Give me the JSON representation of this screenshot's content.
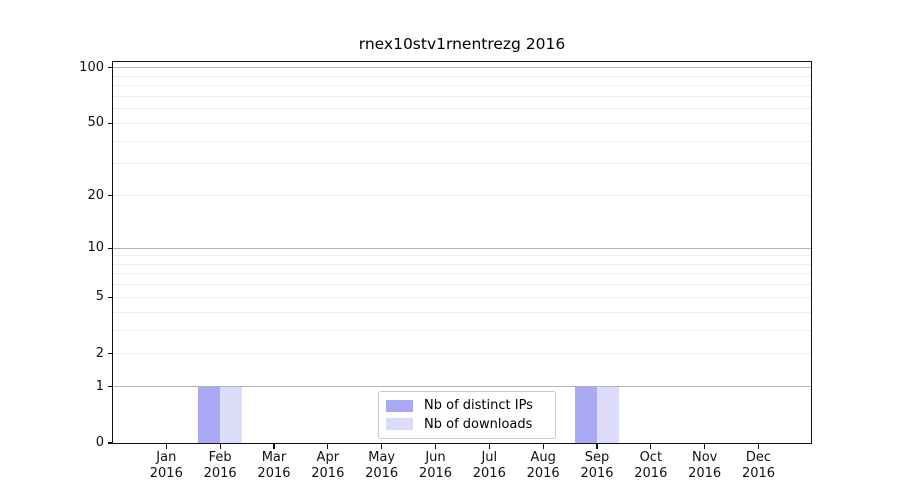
{
  "chart_data": {
    "type": "bar",
    "title": "rnex10stv1rnentrezg 2016",
    "categories": [
      "Jan",
      "Feb",
      "Mar",
      "Apr",
      "May",
      "Jun",
      "Jul",
      "Aug",
      "Sep",
      "Oct",
      "Nov",
      "Dec"
    ],
    "x_tick_second_line": "2016",
    "series": [
      {
        "name": "Nb of distinct IPs",
        "color": "#a9a9f4",
        "values": [
          0,
          1,
          0,
          0,
          0,
          0,
          0,
          0,
          1,
          0,
          0,
          0
        ]
      },
      {
        "name": "Nb of downloads",
        "color": "#dcdcf8",
        "values": [
          0,
          1,
          0,
          0,
          0,
          0,
          0,
          0,
          1,
          0,
          0,
          0
        ]
      }
    ],
    "y_axis": {
      "scale": "log1p",
      "tick_labels": [
        100,
        50,
        20,
        10,
        5,
        2,
        1,
        0
      ],
      "major_gridlines": [
        1,
        10,
        100
      ],
      "minor_gridlines": [
        2,
        3,
        4,
        5,
        6,
        7,
        8,
        9,
        20,
        30,
        40,
        50,
        60,
        70,
        80,
        90
      ],
      "grid_major_color": "#b3b3b3",
      "grid_minor_color": "#ededed",
      "ylim": [
        0,
        107
      ]
    },
    "legend": {
      "position": "lower center",
      "entries": [
        "Nb of distinct IPs",
        "Nb of downloads"
      ]
    }
  }
}
